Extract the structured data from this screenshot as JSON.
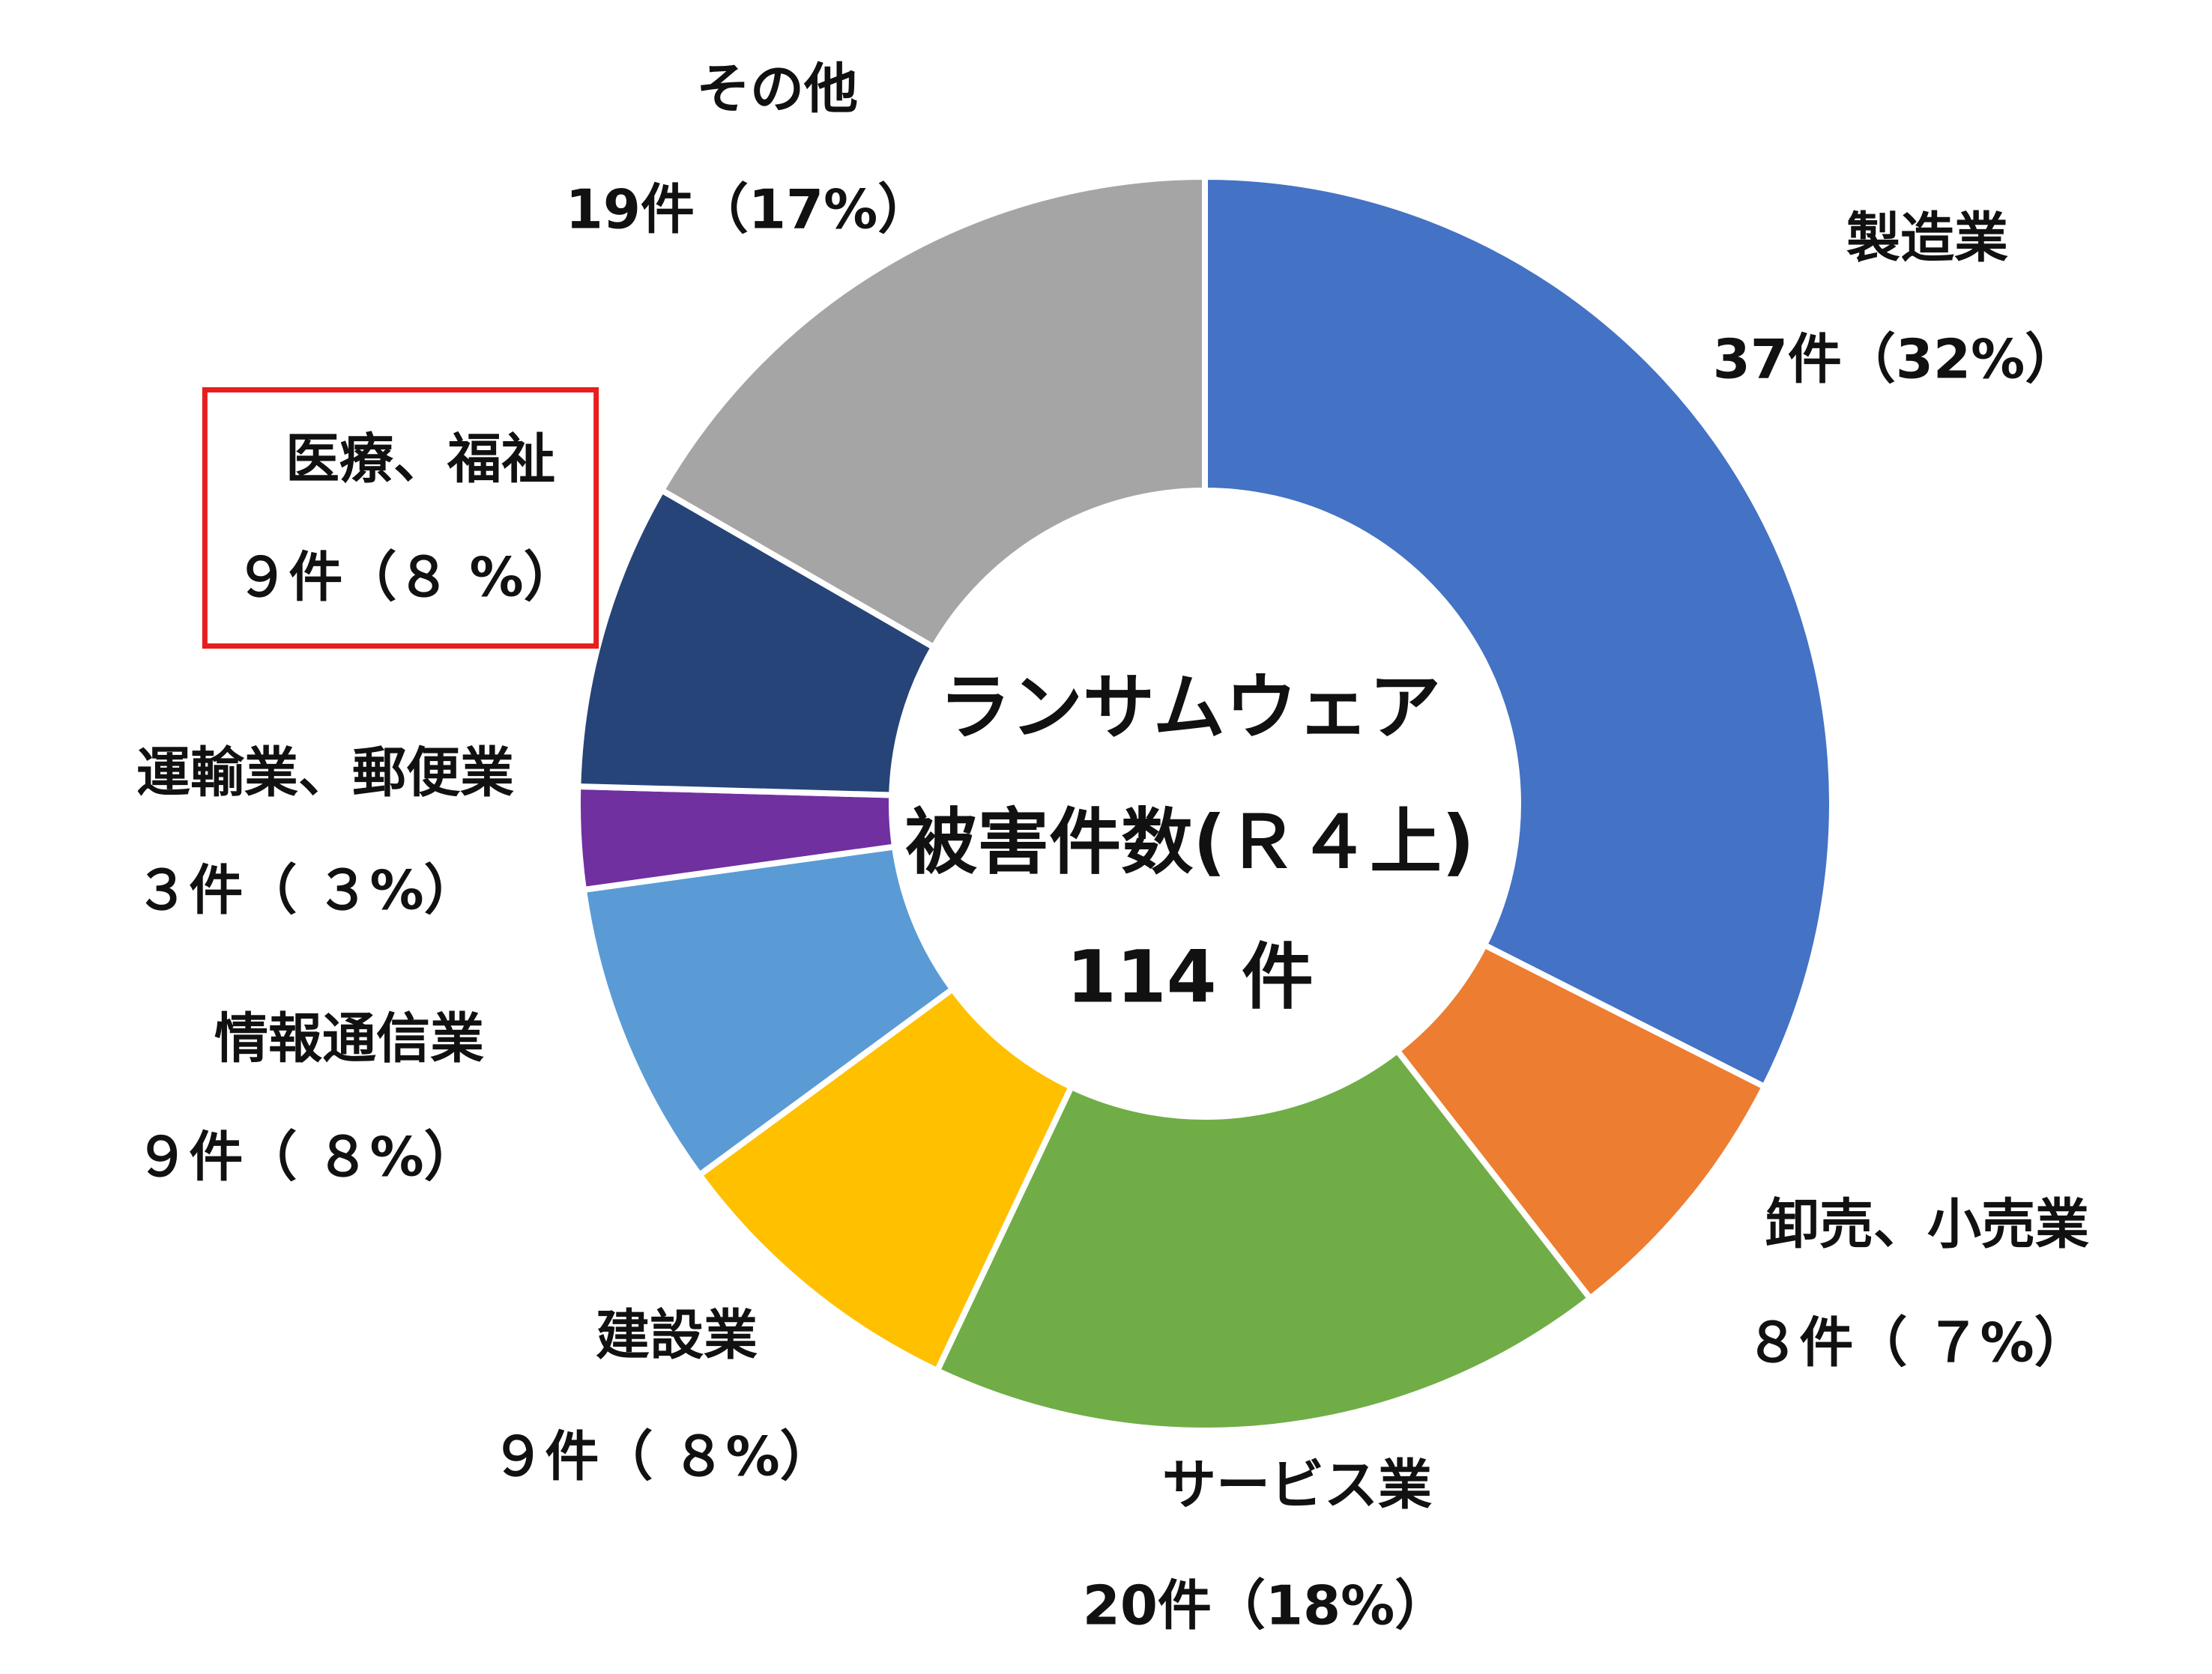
{
  "chart_data": {
    "type": "donut",
    "center_text": [
      "ランサムウェア",
      "被害件数(Ｒ４上)",
      "114 件"
    ],
    "categories": [
      "製造業",
      "卸売、小売業",
      "サービス業",
      "建設業",
      "情報通信業",
      "運輸業、郵便業",
      "医療、福祉",
      "その他"
    ],
    "values": [
      37,
      8,
      20,
      9,
      9,
      3,
      9,
      19
    ],
    "value_labels": [
      "37件（32%）",
      "８件（ ７%）",
      "20件（18%）",
      "９件（ ８%）",
      "９件（ ８%）",
      "３件（ ３%）",
      "９件（８ %）",
      "19件（17%）"
    ],
    "colors": [
      "#4472c4",
      "#ed7d31",
      "#70ad47",
      "#ffc000",
      "#5b9bd5",
      "#7030a0",
      "#264478",
      "#a5a5a5"
    ],
    "highlight_category": "医療、福祉",
    "highlight_color": "#e81e1e"
  }
}
